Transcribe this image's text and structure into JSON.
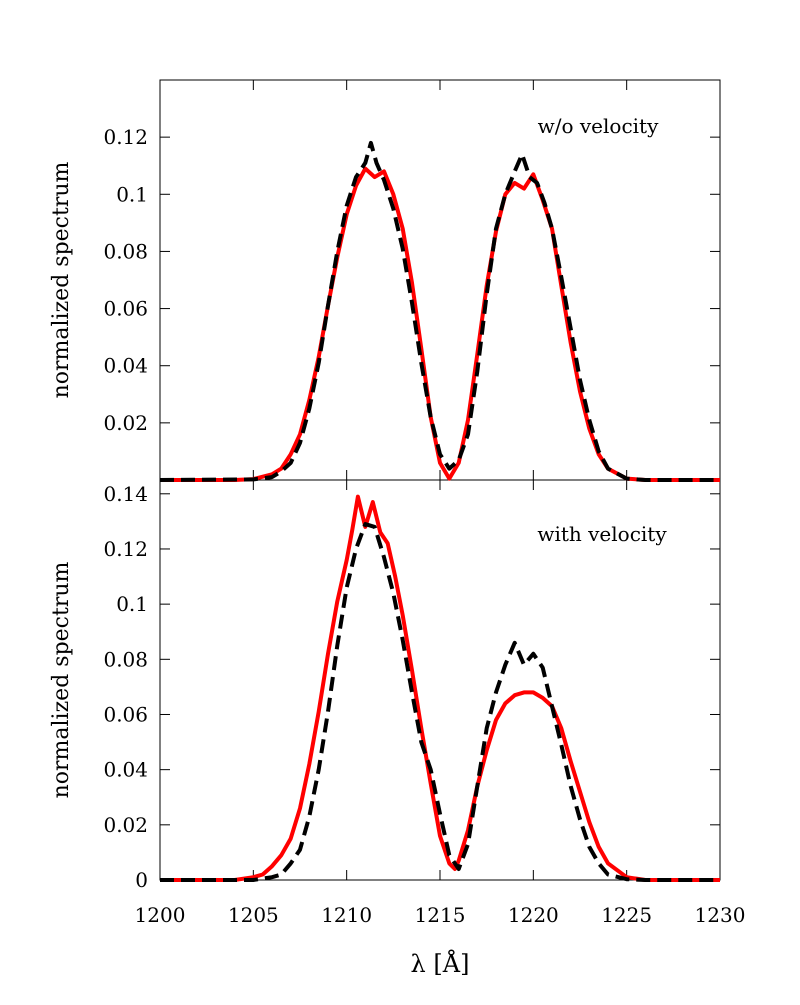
{
  "chart_data": [
    {
      "type": "line",
      "panel": "top",
      "title": "",
      "annotation": "w/o velocity",
      "xlabel": "",
      "ylabel": "normalized spectrum",
      "xlim": [
        1200,
        1230
      ],
      "ylim": [
        0,
        0.14
      ],
      "yticks": [
        0.02,
        0.04,
        0.06,
        0.08,
        0.1,
        0.12
      ],
      "ytick_labels": [
        "0.02",
        "0.04",
        "0.06",
        "0.08",
        "0.1",
        "0.12"
      ],
      "grid": false,
      "series": [
        {
          "color": "#ff0000",
          "style": "solid",
          "x": [
            1200,
            1204,
            1205,
            1206,
            1206.5,
            1207,
            1207.5,
            1208,
            1208.5,
            1209,
            1209.5,
            1210,
            1210.5,
            1211,
            1211.5,
            1212,
            1212.5,
            1213,
            1213.5,
            1214,
            1214.5,
            1215,
            1215.5,
            1216,
            1216.5,
            1217,
            1217.5,
            1218,
            1218.5,
            1219,
            1219.5,
            1220,
            1220.5,
            1221,
            1221.5,
            1222,
            1222.5,
            1223,
            1223.5,
            1224,
            1225,
            1226,
            1230
          ],
          "y": [
            0,
            0,
            0.0003,
            0.002,
            0.004,
            0.009,
            0.016,
            0.028,
            0.043,
            0.061,
            0.078,
            0.093,
            0.103,
            0.109,
            0.106,
            0.108,
            0.1,
            0.088,
            0.069,
            0.046,
            0.022,
            0.006,
            0.0005,
            0.006,
            0.021,
            0.044,
            0.068,
            0.087,
            0.1,
            0.104,
            0.102,
            0.107,
            0.098,
            0.088,
            0.068,
            0.048,
            0.031,
            0.018,
            0.009,
            0.004,
            0.0005,
            0,
            0
          ]
        },
        {
          "color": "#000000",
          "style": "dashed",
          "x": [
            1200,
            1205,
            1206,
            1206.5,
            1207,
            1207.5,
            1208,
            1208.5,
            1209,
            1209.5,
            1210,
            1210.5,
            1211,
            1211.3,
            1211.6,
            1212,
            1212.5,
            1213,
            1213.5,
            1214,
            1214.5,
            1215,
            1215.5,
            1216,
            1216.5,
            1217,
            1217.5,
            1218,
            1218.5,
            1219,
            1219.4,
            1219.8,
            1220.2,
            1220.6,
            1221,
            1221.5,
            1222,
            1222.5,
            1223,
            1223.5,
            1224,
            1225,
            1226,
            1230
          ],
          "y": [
            0,
            0.0002,
            0.001,
            0.003,
            0.006,
            0.013,
            0.025,
            0.041,
            0.061,
            0.08,
            0.096,
            0.106,
            0.111,
            0.118,
            0.111,
            0.105,
            0.095,
            0.081,
            0.062,
            0.041,
            0.022,
            0.009,
            0.004,
            0.007,
            0.016,
            0.038,
            0.065,
            0.088,
            0.1,
            0.108,
            0.114,
            0.106,
            0.104,
            0.097,
            0.088,
            0.071,
            0.053,
            0.035,
            0.021,
            0.01,
            0.004,
            0.0005,
            0,
            0
          ]
        }
      ]
    },
    {
      "type": "line",
      "panel": "bottom",
      "title": "",
      "annotation": "with velocity",
      "xlabel": "λ [Å]",
      "ylabel": "normalized spectrum",
      "xlim": [
        1200,
        1230
      ],
      "ylim": [
        0,
        0.145
      ],
      "xticks": [
        1200,
        1205,
        1210,
        1215,
        1220,
        1225,
        1230
      ],
      "xtick_labels": [
        "1200",
        "1205",
        "1210",
        "1215",
        "1220",
        "1225",
        "1230"
      ],
      "yticks": [
        0,
        0.02,
        0.04,
        0.06,
        0.08,
        0.1,
        0.12,
        0.14
      ],
      "ytick_labels": [
        "0",
        "0.02",
        "0.04",
        "0.06",
        "0.08",
        "0.1",
        "0.12",
        "0.14"
      ],
      "grid": false,
      "series": [
        {
          "color": "#ff0000",
          "style": "solid",
          "x": [
            1200,
            1204,
            1205,
            1205.5,
            1206,
            1206.5,
            1207,
            1207.5,
            1208,
            1208.5,
            1209,
            1209.5,
            1210,
            1210.3,
            1210.6,
            1211,
            1211.4,
            1211.8,
            1212.2,
            1212.6,
            1213,
            1213.5,
            1214,
            1214.5,
            1215,
            1215.5,
            1215.8,
            1216,
            1216.5,
            1217,
            1217.5,
            1218,
            1218.5,
            1219,
            1219.5,
            1220,
            1220.5,
            1221,
            1221.5,
            1222,
            1222.5,
            1223,
            1223.5,
            1224,
            1225,
            1226,
            1230
          ],
          "y": [
            0,
            0,
            0.001,
            0.002,
            0.005,
            0.009,
            0.015,
            0.026,
            0.042,
            0.061,
            0.082,
            0.101,
            0.116,
            0.127,
            0.139,
            0.128,
            0.137,
            0.126,
            0.122,
            0.11,
            0.096,
            0.076,
            0.055,
            0.035,
            0.016,
            0.006,
            0.004,
            0.007,
            0.018,
            0.034,
            0.047,
            0.058,
            0.064,
            0.067,
            0.068,
            0.068,
            0.066,
            0.063,
            0.055,
            0.043,
            0.032,
            0.021,
            0.012,
            0.006,
            0.001,
            0,
            0
          ]
        },
        {
          "color": "#000000",
          "style": "dashed",
          "x": [
            1200,
            1205,
            1206,
            1206.5,
            1207,
            1207.5,
            1208,
            1208.5,
            1209,
            1209.5,
            1210,
            1210.5,
            1211,
            1211.5,
            1212,
            1212.5,
            1213,
            1213.5,
            1214,
            1214.5,
            1215,
            1215.5,
            1216,
            1216.5,
            1217,
            1217.5,
            1218,
            1218.5,
            1219,
            1219.5,
            1220,
            1220.5,
            1221,
            1221.5,
            1222,
            1222.5,
            1223,
            1223.5,
            1224,
            1225,
            1226,
            1230
          ],
          "y": [
            0,
            0,
            0.001,
            0.002,
            0.006,
            0.011,
            0.023,
            0.04,
            0.061,
            0.085,
            0.106,
            0.12,
            0.129,
            0.128,
            0.117,
            0.104,
            0.087,
            0.068,
            0.05,
            0.04,
            0.024,
            0.009,
            0.004,
            0.013,
            0.034,
            0.055,
            0.068,
            0.078,
            0.086,
            0.078,
            0.082,
            0.077,
            0.063,
            0.049,
            0.034,
            0.022,
            0.012,
            0.006,
            0.002,
            0.0003,
            0,
            0
          ]
        }
      ]
    }
  ]
}
